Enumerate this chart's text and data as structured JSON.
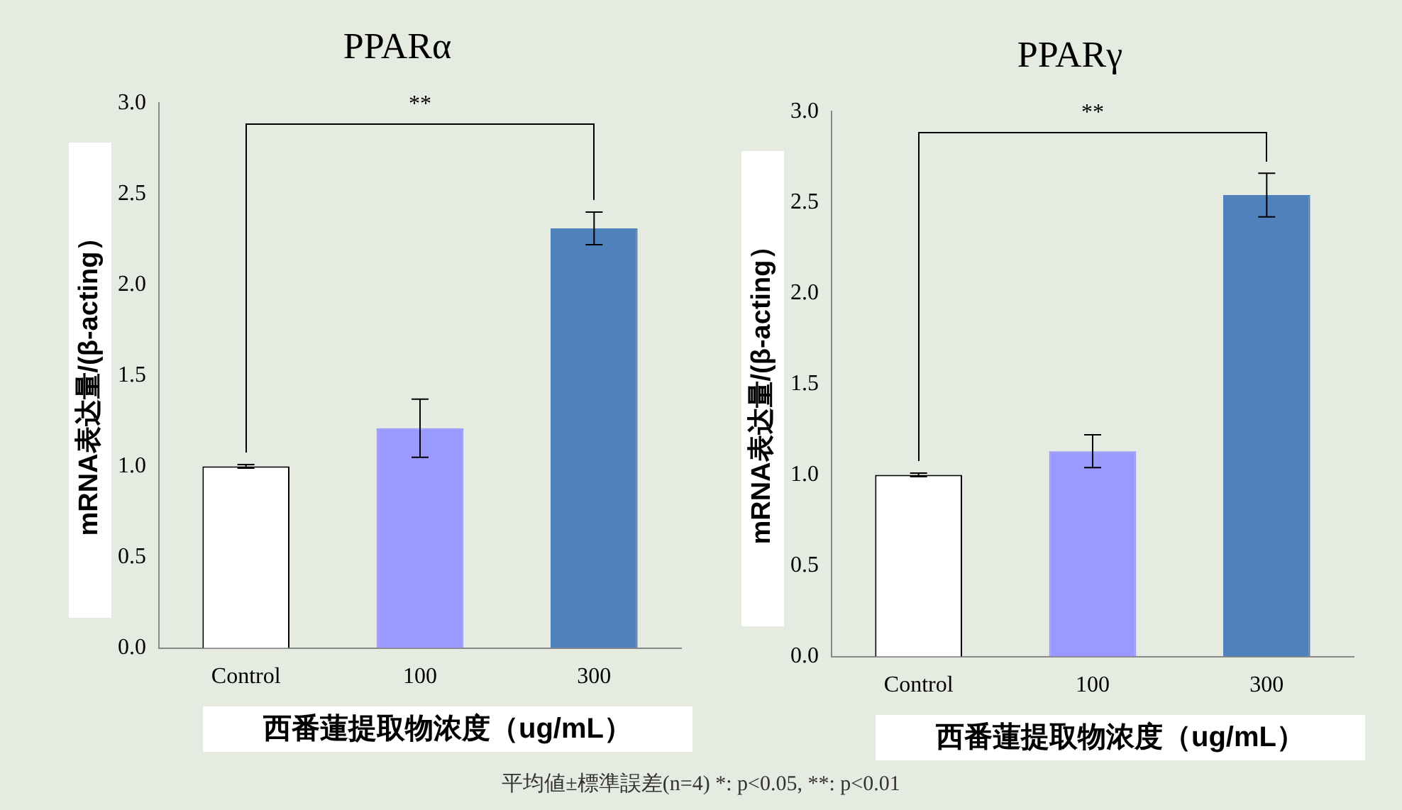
{
  "chart_data": [
    {
      "type": "bar",
      "title": "PPARα",
      "xlabel": "西番蓮提取物浓度（ug/mL）",
      "ylabel": "mRNA表达量/(β-acting）",
      "categories": [
        "Control",
        "100",
        "300"
      ],
      "values": [
        1.0,
        1.21,
        2.31
      ],
      "colors": [
        "#ffffff",
        "#9999ff",
        "#4f81bd"
      ],
      "errors": [
        0.01,
        0.16,
        0.09
      ],
      "ylim": [
        0,
        3
      ],
      "yticks": [
        {
          "value": 0,
          "label": "0.0"
        },
        0.5,
        {
          "value": 1,
          "label": "1.0"
        },
        1.5,
        {
          "value": 2,
          "label": "2.0"
        },
        2.5,
        {
          "value": 3,
          "label": "3.0"
        }
      ],
      "annotations": [
        "**"
      ]
    },
    {
      "type": "bar",
      "title": "PPARγ",
      "xlabel": "西番蓮提取物浓度（ug/mL）",
      "ylabel": "mRNA表达量/(β-acting）",
      "categories": [
        "Control",
        "100",
        "300"
      ],
      "values": [
        1.0,
        1.13,
        2.54
      ],
      "colors": [
        "#ffffff",
        "#9999ff",
        "#4f81bd"
      ],
      "errors": [
        0.01,
        0.09,
        0.12
      ],
      "ylim": [
        0,
        3
      ],
      "yticks": [
        {
          "value": 0,
          "label": "0.0"
        },
        0.5,
        {
          "value": 1,
          "label": "1.0"
        },
        1.5,
        {
          "value": 2,
          "label": "2.0"
        },
        2.5,
        {
          "value": 3,
          "label": "3.0"
        }
      ],
      "annotations": [
        "**",
        "平均値±標準誤差(n=4) *: p<0.05, **: p<0.01"
      ]
    }
  ]
}
